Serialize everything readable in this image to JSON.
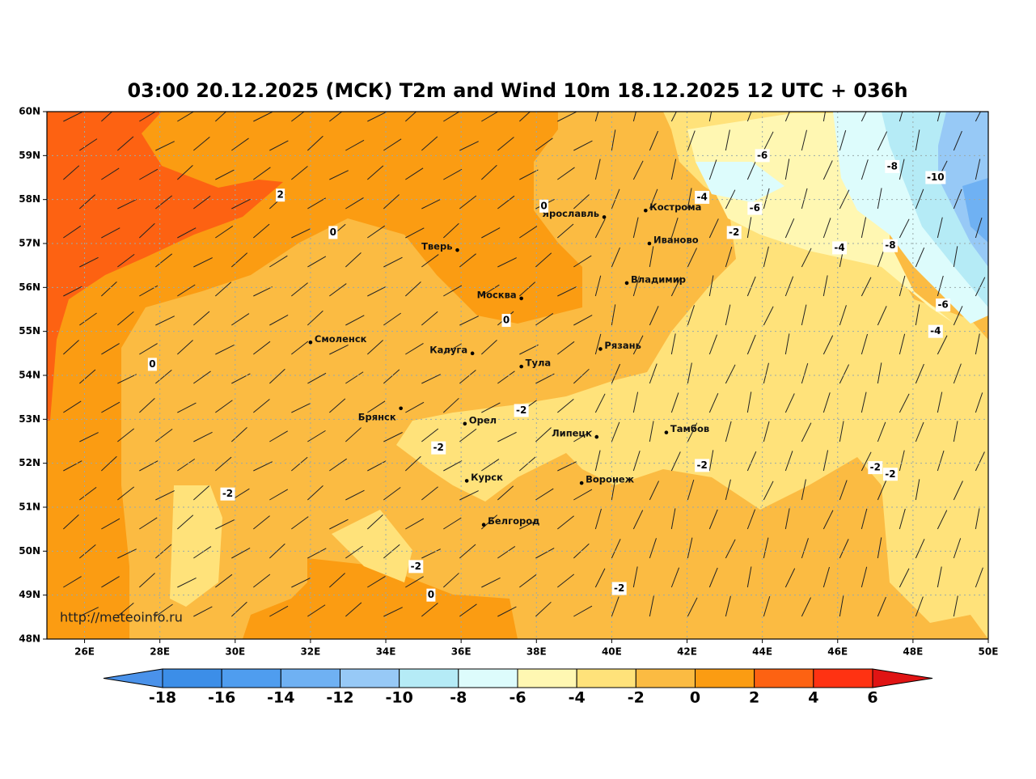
{
  "title": "03:00 20.12.2025 (МСК) T2m and Wind 10m 18.12.2025 12 UTC + 036h",
  "source": "http://meteoinfo.ru",
  "map": {
    "xlim": [
      25,
      50
    ],
    "ylim": [
      48,
      60
    ],
    "grid": true,
    "xticks": [
      {
        "value": 26,
        "label": "26E"
      },
      {
        "value": 28,
        "label": "28E"
      },
      {
        "value": 30,
        "label": "30E"
      },
      {
        "value": 32,
        "label": "32E"
      },
      {
        "value": 34,
        "label": "34E"
      },
      {
        "value": 36,
        "label": "36E"
      },
      {
        "value": 38,
        "label": "38E"
      },
      {
        "value": 40,
        "label": "40E"
      },
      {
        "value": 42,
        "label": "42E"
      },
      {
        "value": 44,
        "label": "44E"
      },
      {
        "value": 46,
        "label": "46E"
      },
      {
        "value": 48,
        "label": "48E"
      },
      {
        "value": 50,
        "label": "50E"
      }
    ],
    "yticks": [
      {
        "value": 48,
        "label": "48N"
      },
      {
        "value": 49,
        "label": "49N"
      },
      {
        "value": 50,
        "label": "50N"
      },
      {
        "value": 51,
        "label": "51N"
      },
      {
        "value": 52,
        "label": "52N"
      },
      {
        "value": 53,
        "label": "53N"
      },
      {
        "value": 54,
        "label": "54N"
      },
      {
        "value": 55,
        "label": "55N"
      },
      {
        "value": 56,
        "label": "56N"
      },
      {
        "value": 57,
        "label": "57N"
      },
      {
        "value": 58,
        "label": "58N"
      },
      {
        "value": 59,
        "label": "59N"
      },
      {
        "value": 60,
        "label": "60N"
      }
    ],
    "cities": [
      {
        "name": "Ярославль",
        "lon": 39.8,
        "lat": 57.6
      },
      {
        "name": "Кострома",
        "lon": 40.9,
        "lat": 57.75
      },
      {
        "name": "Тверь",
        "lon": 35.9,
        "lat": 56.85
      },
      {
        "name": "Иваново",
        "lon": 41.0,
        "lat": 57.0
      },
      {
        "name": "Владимир",
        "lon": 40.4,
        "lat": 56.1
      },
      {
        "name": "Москва",
        "lon": 37.6,
        "lat": 55.75
      },
      {
        "name": "Смоленск",
        "lon": 32.0,
        "lat": 54.75
      },
      {
        "name": "Калуга",
        "lon": 36.3,
        "lat": 54.5
      },
      {
        "name": "Рязань",
        "lon": 39.7,
        "lat": 54.6
      },
      {
        "name": "Тула",
        "lon": 37.6,
        "lat": 54.2
      },
      {
        "name": "Брянск",
        "lon": 34.4,
        "lat": 53.25
      },
      {
        "name": "Орел",
        "lon": 36.1,
        "lat": 52.9
      },
      {
        "name": "Липецк",
        "lon": 39.6,
        "lat": 52.6
      },
      {
        "name": "Тамбов",
        "lon": 41.45,
        "lat": 52.7
      },
      {
        "name": "Курск",
        "lon": 36.15,
        "lat": 51.6
      },
      {
        "name": "Воронеж",
        "lon": 39.2,
        "lat": 51.55
      },
      {
        "name": "Белгород",
        "lon": 36.6,
        "lat": 50.6
      }
    ],
    "contour_labels": [
      {
        "value": -6,
        "lon": 44.0,
        "lat": 59.0
      },
      {
        "value": -8,
        "lon": 47.45,
        "lat": 58.75
      },
      {
        "value": -10,
        "lon": 48.6,
        "lat": 58.5
      },
      {
        "value": -4,
        "lon": 42.4,
        "lat": 58.05
      },
      {
        "value": -6,
        "lon": 43.8,
        "lat": 57.8
      },
      {
        "value": 0,
        "lon": 38.2,
        "lat": 57.85
      },
      {
        "value": 2,
        "lon": 31.2,
        "lat": 58.1
      },
      {
        "value": 0,
        "lon": 32.6,
        "lat": 57.25
      },
      {
        "value": -2,
        "lon": 43.25,
        "lat": 57.25
      },
      {
        "value": -4,
        "lon": 46.05,
        "lat": 56.9
      },
      {
        "value": -8,
        "lon": 47.4,
        "lat": 56.95
      },
      {
        "value": -6,
        "lon": 48.8,
        "lat": 55.6
      },
      {
        "value": -4,
        "lon": 48.6,
        "lat": 55.0
      },
      {
        "value": 0,
        "lon": 37.2,
        "lat": 55.25
      },
      {
        "value": 0,
        "lon": 27.8,
        "lat": 54.25
      },
      {
        "value": -2,
        "lon": 37.6,
        "lat": 53.2
      },
      {
        "value": -2,
        "lon": 35.4,
        "lat": 52.35
      },
      {
        "value": -2,
        "lon": 42.4,
        "lat": 51.95
      },
      {
        "value": -2,
        "lon": 47.0,
        "lat": 51.9
      },
      {
        "value": -2,
        "lon": 47.4,
        "lat": 51.75
      },
      {
        "value": -2,
        "lon": 29.8,
        "lat": 51.3
      },
      {
        "value": -2,
        "lon": 34.8,
        "lat": 49.65
      },
      {
        "value": -2,
        "lon": 40.2,
        "lat": 49.15
      },
      {
        "value": 0,
        "lon": 35.2,
        "lat": 49.0
      }
    ]
  },
  "colorbar": {
    "levels": [
      -18,
      -16,
      -14,
      -12,
      -10,
      -8,
      -6,
      -4,
      -2,
      0,
      2,
      4,
      6
    ],
    "colors": [
      "#3c8ee8",
      "#4f9def",
      "#6fb1f3",
      "#97c9f6",
      "#b5ebf6",
      "#ddfcfc",
      "#fff7b2",
      "#ffe27a",
      "#fbbb42",
      "#fb9c12",
      "#fd6212",
      "#ff3212"
    ],
    "under_color": "#4a92ea",
    "over_color": "#e01414"
  }
}
